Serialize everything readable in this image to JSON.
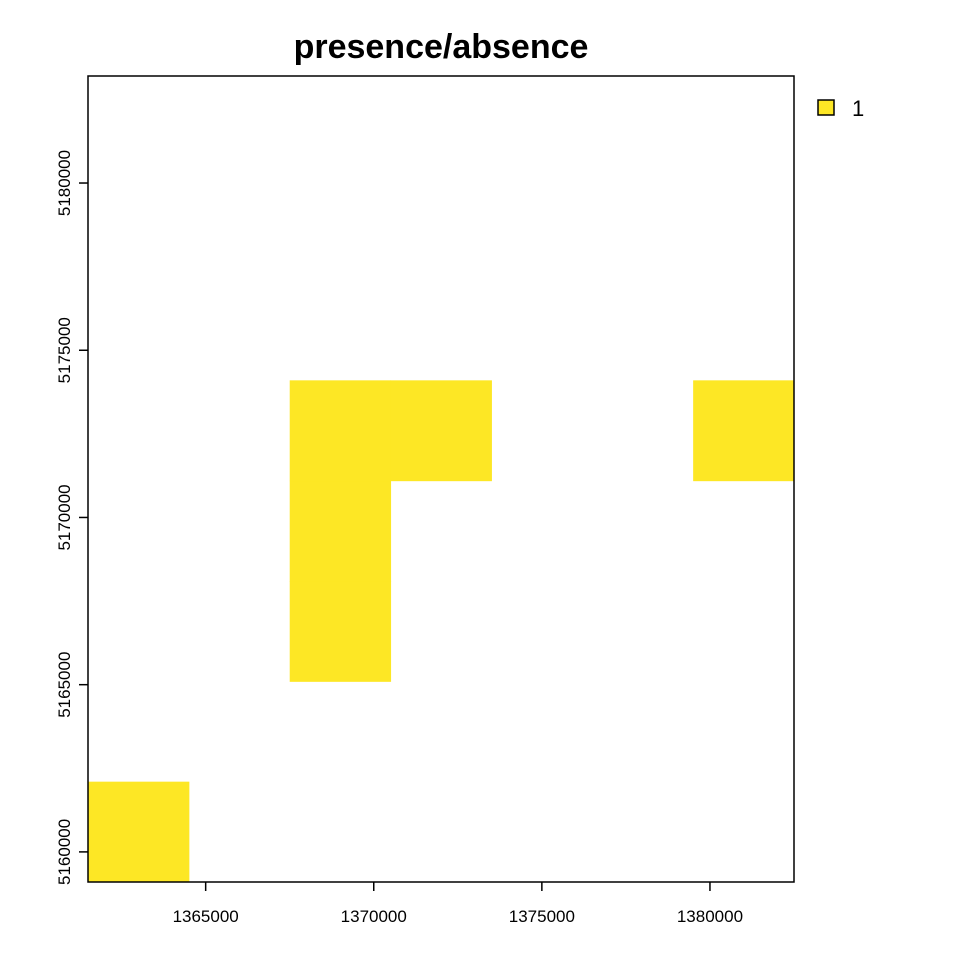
{
  "chart_data": {
    "type": "heatmap",
    "title": "presence/absence",
    "xlabel": "",
    "ylabel": "",
    "xlim": [
      1361500,
      1382500
    ],
    "ylim": [
      5159100,
      5183200
    ],
    "cell_size": 3000,
    "x_ticks": [
      1365000,
      1370000,
      1375000,
      1380000
    ],
    "y_ticks": [
      5160000,
      5165000,
      5170000,
      5175000,
      5180000
    ],
    "x_tick_labels": [
      "1365000",
      "1370000",
      "1375000",
      "1380000"
    ],
    "y_tick_labels": [
      "5160000",
      "5165000",
      "5170000",
      "5175000",
      "5180000"
    ],
    "cells": [
      {
        "x": [
          1361500,
          1364500
        ],
        "y": [
          5159100,
          5162100
        ],
        "value": 1
      },
      {
        "x": [
          1367500,
          1370500
        ],
        "y": [
          5165100,
          5168100
        ],
        "value": 1
      },
      {
        "x": [
          1367500,
          1370500
        ],
        "y": [
          5168100,
          5171100
        ],
        "value": 1
      },
      {
        "x": [
          1367500,
          1370500
        ],
        "y": [
          5171100,
          5174100
        ],
        "value": 1
      },
      {
        "x": [
          1370500,
          1373500
        ],
        "y": [
          5171100,
          5174100
        ],
        "value": 1
      },
      {
        "x": [
          1379500,
          1382500
        ],
        "y": [
          5171100,
          5174100
        ],
        "value": 1
      }
    ],
    "legend": {
      "position": "top-right",
      "entries": [
        {
          "label": "1",
          "color": "#FDE725"
        }
      ]
    },
    "colors": {
      "presence": "#FDE725"
    },
    "grid": false
  }
}
